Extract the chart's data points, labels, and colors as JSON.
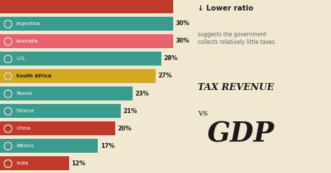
{
  "countries": [
    "India",
    "Mexico",
    "China",
    "Türkiye",
    "Russia",
    "South Africa",
    "U.S.",
    "Australia",
    "Argentina"
  ],
  "values": [
    12,
    17,
    20,
    21,
    23,
    27,
    28,
    30,
    30
  ],
  "bar_colors": [
    "#c0392b",
    "#3a9c8e",
    "#c0392b",
    "#3a9c8e",
    "#3a9c8e",
    "#d4a820",
    "#3a9c8e",
    "#e8636e",
    "#3a9c8e"
  ],
  "pct_labels": [
    "12%",
    "17%",
    "20%",
    "21%",
    "23%",
    "27%",
    "28%",
    "30%",
    "30%"
  ],
  "bg_color": "#f0e8d0",
  "title_tax": "TAX REVENUE",
  "title_vs": "VS",
  "title_gdp": "GDP",
  "annotation_arrow": "↓ Lower ratio",
  "annotation_text": "suggests the government\ncollects relatively little taxes.",
  "top_bar_color": "#c0392b",
  "label_bold": [
    "South Africa"
  ],
  "label_dark_text": [
    "South Africa"
  ]
}
